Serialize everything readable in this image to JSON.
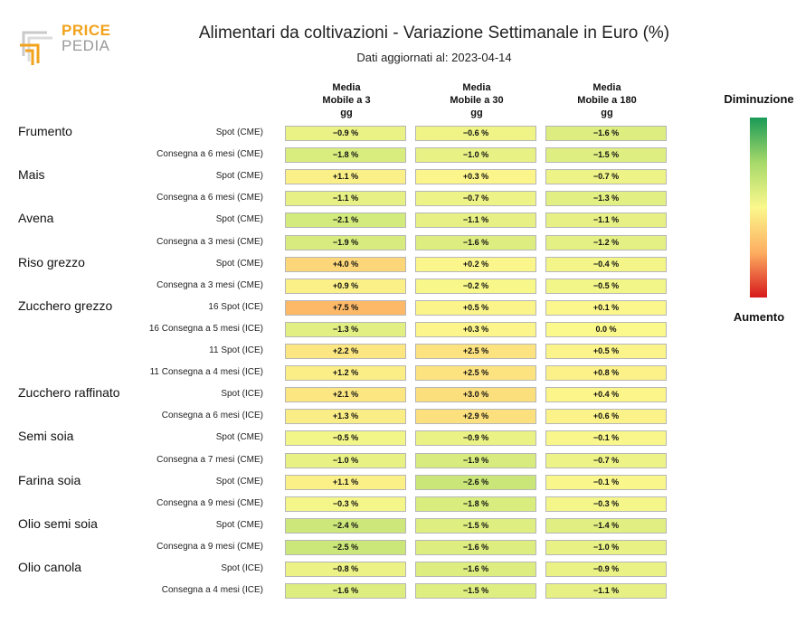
{
  "logo": {
    "top": "PRICE",
    "bottom": "PEDIA"
  },
  "title": "Alimentari da coltivazioni - Variazione Settimanale in Euro (%)",
  "subtitle": "Dati aggiornati al: 2023-04-14",
  "legend": {
    "top": "Diminuzione",
    "bottom": "Aumento",
    "colors": [
      "#1a9a57",
      "#a6d96a",
      "#fbf88c",
      "#fdae61",
      "#d7191c"
    ]
  },
  "chart_data": {
    "type": "table",
    "title": "Alimentari da coltivazioni - Variazione Settimanale in Euro (%)",
    "columns": [
      {
        "l1": "Media",
        "l2": "Mobile a 3",
        "l3": "gg"
      },
      {
        "l1": "Media",
        "l2": "Mobile a 30",
        "l3": "gg"
      },
      {
        "l1": "Media",
        "l2": "Mobile a 180",
        "l3": "gg"
      }
    ],
    "unit": "%",
    "groups": [
      {
        "name": "Frumento",
        "rows": [
          {
            "label": "Spot (CME)",
            "values": [
              -0.9,
              -0.6,
              -1.6
            ]
          },
          {
            "label": "Consegna a 6 mesi (CME)",
            "values": [
              -1.8,
              -1.0,
              -1.5
            ]
          }
        ]
      },
      {
        "name": "Mais",
        "rows": [
          {
            "label": "Spot (CME)",
            "values": [
              1.1,
              0.3,
              -0.7
            ]
          },
          {
            "label": "Consegna a 6 mesi (CME)",
            "values": [
              -1.1,
              -0.7,
              -1.3
            ]
          }
        ]
      },
      {
        "name": "Avena",
        "rows": [
          {
            "label": "Spot (CME)",
            "values": [
              -2.1,
              -1.1,
              -1.1
            ]
          },
          {
            "label": "Consegna a 3 mesi (CME)",
            "values": [
              -1.9,
              -1.6,
              -1.2
            ]
          }
        ]
      },
      {
        "name": "Riso grezzo",
        "rows": [
          {
            "label": "Spot (CME)",
            "values": [
              4.0,
              0.2,
              -0.4
            ]
          },
          {
            "label": "Consegna a 3 mesi (CME)",
            "values": [
              0.9,
              -0.2,
              -0.5
            ]
          }
        ]
      },
      {
        "name": "Zucchero grezzo",
        "rows": [
          {
            "label": "16 Spot (ICE)",
            "values": [
              7.5,
              0.5,
              0.1
            ]
          },
          {
            "label": "16 Consegna a 5 mesi (ICE)",
            "values": [
              -1.3,
              0.3,
              0.0
            ]
          },
          {
            "label": "11 Spot (ICE)",
            "values": [
              2.2,
              2.5,
              0.5
            ]
          },
          {
            "label": "11 Consegna a 4 mesi (ICE)",
            "values": [
              1.2,
              2.5,
              0.8
            ]
          }
        ]
      },
      {
        "name": "Zucchero raffinato",
        "rows": [
          {
            "label": "Spot (ICE)",
            "values": [
              2.1,
              3.0,
              0.4
            ]
          },
          {
            "label": "Consegna a 6 mesi (ICE)",
            "values": [
              1.3,
              2.9,
              0.6
            ]
          }
        ]
      },
      {
        "name": "Semi soia",
        "rows": [
          {
            "label": "Spot (CME)",
            "values": [
              -0.5,
              -0.9,
              -0.1
            ]
          },
          {
            "label": "Consegna a 7 mesi (CME)",
            "values": [
              -1.0,
              -1.9,
              -0.7
            ]
          }
        ]
      },
      {
        "name": "Farina soia",
        "rows": [
          {
            "label": "Spot (CME)",
            "values": [
              1.1,
              -2.6,
              -0.1
            ]
          },
          {
            "label": "Consegna a 9 mesi (CME)",
            "values": [
              -0.3,
              -1.8,
              -0.3
            ]
          }
        ]
      },
      {
        "name": "Olio semi soia",
        "rows": [
          {
            "label": "Spot (CME)",
            "values": [
              -2.4,
              -1.5,
              -1.4
            ]
          },
          {
            "label": "Consegna a 9 mesi (CME)",
            "values": [
              -2.5,
              -1.6,
              -1.0
            ]
          }
        ]
      },
      {
        "name": "Olio canola",
        "rows": [
          {
            "label": "Spot (ICE)",
            "values": [
              -0.8,
              -1.6,
              -0.9
            ]
          },
          {
            "label": "Consegna a 4 mesi (ICE)",
            "values": [
              -1.6,
              -1.5,
              -1.1
            ]
          }
        ]
      }
    ]
  }
}
